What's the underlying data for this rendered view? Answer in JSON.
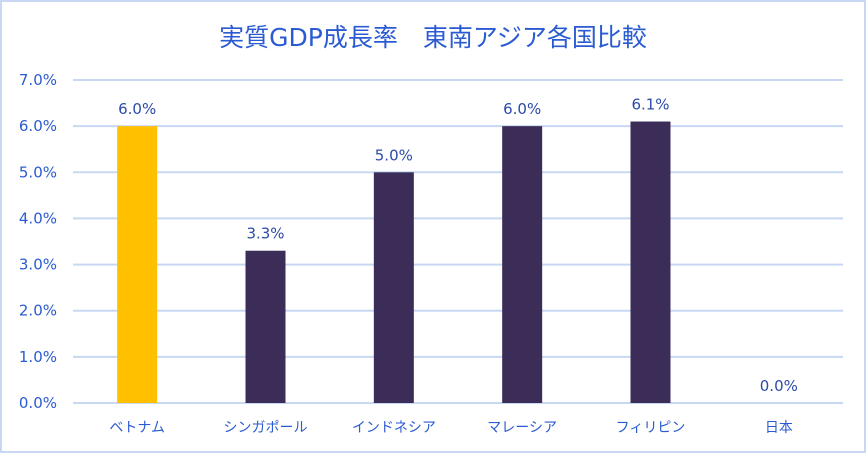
{
  "chart_data": {
    "type": "bar",
    "title": "実質GDP成長率　東南アジア各国比較",
    "categories": [
      "ベトナム",
      "シンガポール",
      "インドネシア",
      "マレーシア",
      "フィリピン",
      "日本"
    ],
    "values": [
      6.0,
      3.3,
      5.0,
      6.0,
      6.1,
      0.0
    ],
    "data_labels": [
      "6.0%",
      "3.3%",
      "5.0%",
      "6.0%",
      "6.1%",
      "0.0%"
    ],
    "ylim": [
      0,
      7
    ],
    "yticks": [
      "0.0%",
      "1.0%",
      "2.0%",
      "3.0%",
      "4.0%",
      "5.0%",
      "6.0%",
      "7.0%"
    ],
    "grid": true,
    "legend": "none",
    "colors": {
      "highlight": "#ffc000",
      "bar": "#3b2d58",
      "grid": "#c8d8f2",
      "text": "#2b5bd2"
    },
    "highlight_index": 0
  }
}
